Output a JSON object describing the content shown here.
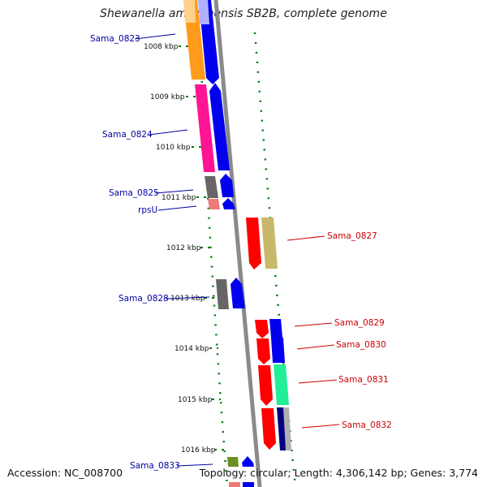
{
  "title": "Shewanella amazonensis SB2B, complete genome",
  "accession": "Accession: NC_008700",
  "summary": "Topology: circular; Length: 4,306,142 bp; Genes: 3,774",
  "colors": {
    "label_forward": "#00009e",
    "label_reverse": "#cc0000",
    "backbone": "#8a8a8a",
    "tick": "#007a00"
  },
  "ticks": [
    {
      "label": "1008 kbp"
    },
    {
      "label": "1009 kbp"
    },
    {
      "label": "1010 kbp"
    },
    {
      "label": "1011 kbp"
    },
    {
      "label": "1012 kbp"
    },
    {
      "label": "1013 kbp"
    },
    {
      "label": "1014 kbp"
    },
    {
      "label": "1015 kbp"
    },
    {
      "label": "1016 kbp"
    }
  ],
  "gene_labels_forward": [
    "Sama_0823",
    "Sama_0824",
    "Sama_0825",
    "rpsU",
    "Sama_0828",
    "Sama_0833"
  ],
  "gene_labels_reverse": [
    "Sama_0827",
    "Sama_0829",
    "Sama_0830",
    "Sama_0831",
    "Sama_0832"
  ]
}
